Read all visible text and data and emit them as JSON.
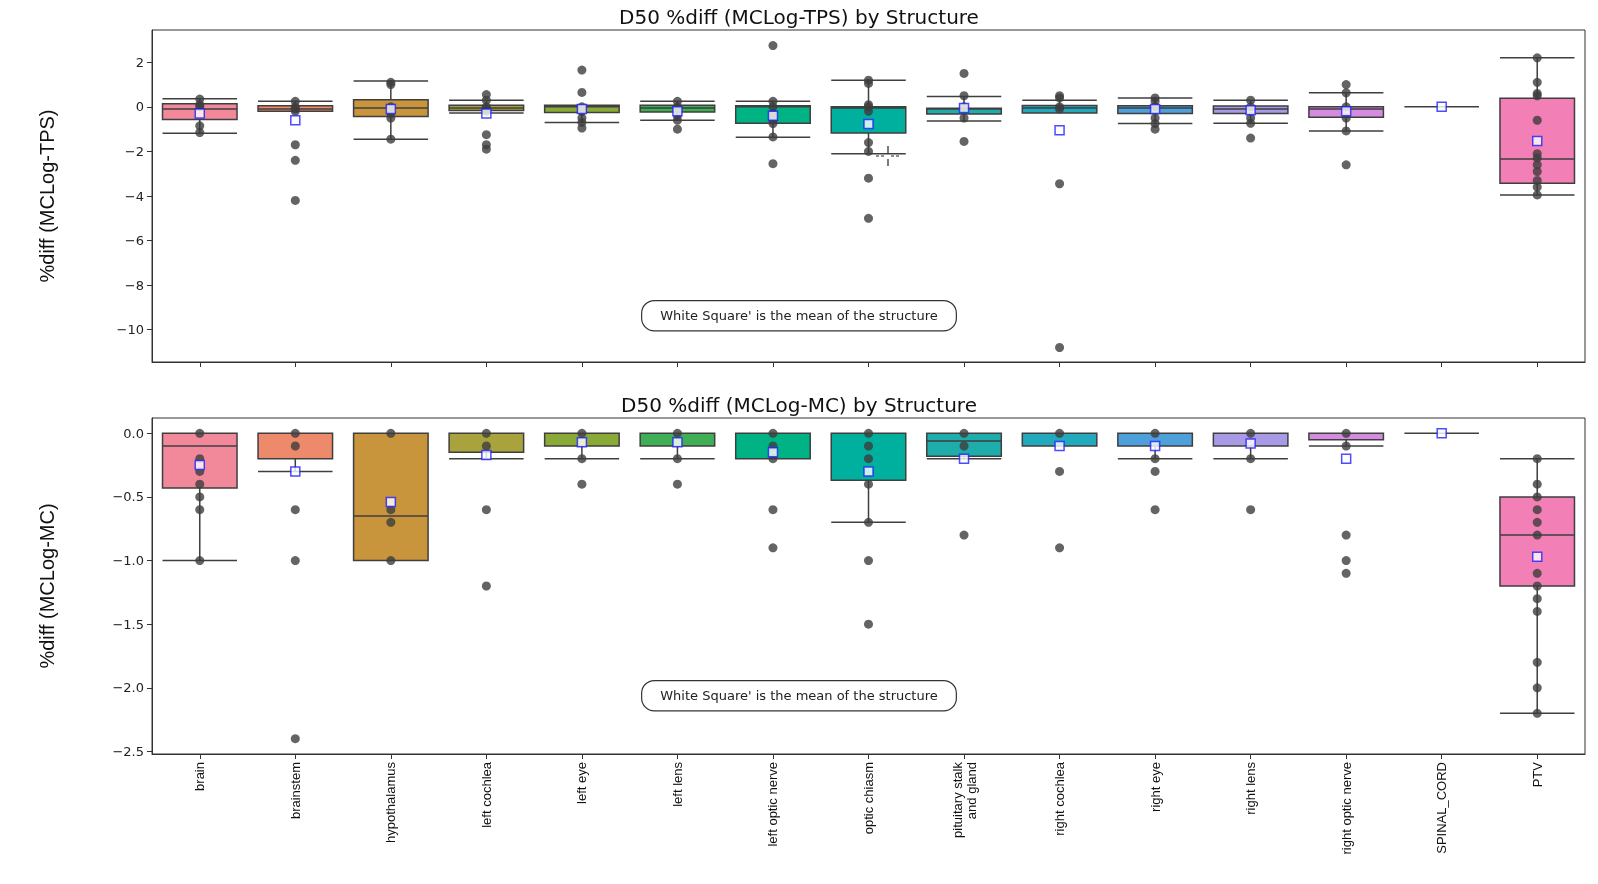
{
  "chart_data": [
    {
      "type": "box",
      "title": "D50 %diff (MCLog-TPS) by Structure",
      "ylabel": "%diff (MCLog-TPS)",
      "tick_labels": "y",
      "categories": [
        "brain",
        "brainstem",
        "hypothalamus",
        "left cochlea",
        "left eye",
        "left lens",
        "left optic nerve",
        "optic chiasm",
        "pituitary stalk\nand gland",
        "right cochlea",
        "right eye",
        "right lens",
        "right optic nerve",
        "SPINAL_CORD",
        "PTV"
      ],
      "colors": [
        "#f2899b",
        "#ee8a6c",
        "#c8943c",
        "#a8a33d",
        "#8aaa38",
        "#3fae55",
        "#00b385",
        "#00b09e",
        "#1fadab",
        "#22a9bd",
        "#4ea0da",
        "#a99ae6",
        "#d58be0",
        "#3f3f3f",
        "#f27fb5"
      ],
      "ylim": [
        -11.45,
        3.45
      ],
      "yticks": [
        {
          "value": -10,
          "label": "−10"
        },
        {
          "value": -8,
          "label": "−8"
        },
        {
          "value": -6,
          "label": "−6"
        },
        {
          "value": -4,
          "label": "−4"
        },
        {
          "value": -2,
          "label": "−2"
        },
        0,
        2
      ],
      "boxes": [
        {
          "low": -1.18,
          "q1": -0.57,
          "median": -0.1,
          "q3": 0.14,
          "high": 0.36,
          "mean": -0.3
        },
        {
          "low": -0.2,
          "q1": -0.2,
          "median": -0.1,
          "q3": 0.05,
          "high": 0.25,
          "mean": -0.6,
          "outliers": [
            -1.7,
            -2.4,
            -4.2
          ]
        },
        {
          "low": -1.45,
          "q1": -0.43,
          "median": -0.05,
          "q3": 0.32,
          "high": 1.16,
          "mean": -0.1
        },
        {
          "low": -0.27,
          "q1": -0.16,
          "median": -0.05,
          "q3": 0.07,
          "high": 0.3,
          "mean": -0.3,
          "outliers": [
            0.55,
            -1.25,
            -1.7,
            -1.9
          ]
        },
        {
          "low": -0.7,
          "q1": -0.25,
          "median": 0,
          "q3": 0.07,
          "high": 0.07,
          "mean": -0.1,
          "outliers": [
            1.65,
            0.65,
            -0.95
          ]
        },
        {
          "low": -0.6,
          "q1": -0.23,
          "median": -0.05,
          "q3": 0.07,
          "high": 0.25,
          "mean": -0.2,
          "outliers": [
            -1.0
          ]
        },
        {
          "low": -1.36,
          "q1": -0.73,
          "median": 0,
          "q3": 0.05,
          "high": 0.25,
          "mean": -0.4,
          "outliers": [
            2.75,
            -2.55
          ]
        },
        {
          "low": -2.1,
          "q1": -1.17,
          "median": -0.05,
          "q3": 0,
          "high": 1.2,
          "mean": -0.77,
          "outliers": [
            -3.2,
            -5.0
          ]
        },
        {
          "low": -0.63,
          "q1": -0.32,
          "median": -0.1,
          "q3": -0.06,
          "high": 0.46,
          "mean": -0.05,
          "outliers": [
            1.5,
            -1.55
          ]
        },
        {
          "low": -0.27,
          "q1": -0.27,
          "median": -0.05,
          "q3": 0.06,
          "high": 0.3,
          "mean": -1.05,
          "outliers": [
            0.5,
            -3.45,
            -10.8
          ]
        },
        {
          "low": -0.75,
          "q1": -0.3,
          "median": -0.05,
          "q3": 0.05,
          "high": 0.4,
          "mean": -0.1,
          "outliers": [
            -1.0
          ]
        },
        {
          "low": -0.74,
          "q1": -0.3,
          "median": -0.1,
          "q3": 0.04,
          "high": 0.3,
          "mean": -0.15,
          "outliers": [
            -1.4
          ]
        },
        {
          "low": -1.08,
          "q1": -0.47,
          "median": -0.1,
          "q3": 0,
          "high": 0.63,
          "mean": -0.2,
          "outliers": [
            1.0,
            -2.6
          ]
        },
        {
          "low": 0,
          "q1": 0,
          "median": 0,
          "q3": 0,
          "high": 0,
          "mean": 0
        },
        {
          "low": -3.95,
          "q1": -3.43,
          "median": -2.34,
          "q3": 0.39,
          "high": 2.2,
          "mean": -1.53
        }
      ],
      "series": [
        {
          "type": "scatter",
          "color": "#3d3d3d",
          "x": [
            "brain",
            "brain",
            "brain",
            "brain",
            "brain",
            "brainstem",
            "brainstem",
            "brainstem",
            "brainstem",
            "hypothalamus",
            "hypothalamus",
            "hypothalamus",
            "hypothalamus",
            "hypothalamus",
            "hypothalamus",
            "left cochlea",
            "left cochlea",
            "left cochlea",
            "left cochlea",
            "left eye",
            "left eye",
            "left eye",
            "left eye",
            "left lens",
            "left lens",
            "left lens",
            "left lens",
            "left optic nerve",
            "left optic nerve",
            "left optic nerve",
            "left optic nerve",
            "left optic nerve",
            "left optic nerve",
            "optic chiasm",
            "optic chiasm",
            "optic chiasm",
            "optic chiasm",
            "optic chiasm",
            "optic chiasm",
            "optic chiasm",
            "pituitary stalk\nand gland",
            "pituitary stalk\nand gland",
            "pituitary stalk\nand gland",
            "right cochlea",
            "right cochlea",
            "right cochlea",
            "right eye",
            "right eye",
            "right eye",
            "right eye",
            "right eye",
            "right lens",
            "right lens",
            "right lens",
            "right lens",
            "right optic nerve",
            "right optic nerve",
            "right optic nerve",
            "right optic nerve",
            "PTV",
            "PTV",
            "PTV",
            "PTV",
            "PTV",
            "PTV",
            "PTV",
            "PTV",
            "PTV",
            "PTV",
            "PTV",
            "PTV"
          ],
          "values": [
            0.35,
            0.1,
            0,
            -0.85,
            -1.15,
            0.25,
            0,
            -0.1,
            -0.2,
            1.1,
            1.0,
            0,
            -0.3,
            -0.5,
            -1.45,
            0.3,
            0,
            -0.1,
            -0.2,
            0,
            -0.2,
            -0.5,
            -0.7,
            0.25,
            0,
            -0.4,
            -0.6,
            0.25,
            0,
            -0.3,
            -0.6,
            -0.75,
            -1.35,
            1.2,
            1.05,
            0.1,
            0,
            -0.2,
            -1.6,
            -2.0,
            0.5,
            0,
            -0.5,
            0.4,
            0,
            -0.1,
            0.4,
            0.25,
            0,
            -0.5,
            -0.75,
            0.3,
            0,
            -0.5,
            -0.74,
            0.63,
            0,
            -0.5,
            -1.08,
            2.2,
            1.1,
            0.6,
            0.5,
            -0.6,
            -2.1,
            -2.3,
            -2.6,
            -2.9,
            -3.3,
            -3.6,
            -3.95
          ]
        }
      ],
      "annotations": [
        "White Square' is the mean of the structure"
      ]
    },
    {
      "type": "box",
      "title": "D50 %diff (MCLog-MC) by Structure",
      "ylabel": "%diff (MCLog-MC)",
      "categories": [
        "brain",
        "brainstem",
        "hypothalamus",
        "left cochlea",
        "left eye",
        "left lens",
        "left optic nerve",
        "optic chiasm",
        "pituitary stalk\nand gland",
        "right cochlea",
        "right eye",
        "right lens",
        "right optic nerve",
        "SPINAL_CORD",
        "PTV"
      ],
      "colors": [
        "#f2899b",
        "#ee8a6c",
        "#c8943c",
        "#a8a33d",
        "#8aaa38",
        "#3fae55",
        "#00b385",
        "#00b09e",
        "#1fadab",
        "#22a9bd",
        "#4ea0da",
        "#a99ae6",
        "#d58be0",
        "#3f3f3f",
        "#f27fb5"
      ],
      "ylim": [
        -2.52,
        0.12
      ],
      "yticks": [
        {
          "value": -2.5,
          "label": "−2.5"
        },
        {
          "value": -2,
          "label": "−2.0"
        },
        {
          "value": -1.5,
          "label": "−1.5"
        },
        {
          "value": -1,
          "label": "−1.0"
        },
        {
          "value": -0.5,
          "label": "−0.5"
        },
        {
          "value": 0,
          "label": "0.0"
        }
      ],
      "boxes": [
        {
          "low": -1.0,
          "q1": -0.43,
          "median": -0.1,
          "q3": 0,
          "high": 0,
          "mean": -0.25
        },
        {
          "low": -0.3,
          "q1": -0.2,
          "median": 0,
          "q3": 0,
          "high": 0,
          "mean": -0.3,
          "outliers": [
            -0.6,
            -1.0,
            -2.4
          ]
        },
        {
          "low": -1.0,
          "q1": -1.0,
          "median": -0.65,
          "q3": 0,
          "high": 0,
          "mean": -0.54
        },
        {
          "low": -0.2,
          "q1": -0.15,
          "median": 0,
          "q3": 0,
          "high": 0,
          "mean": -0.17,
          "outliers": [
            -0.6,
            -1.2
          ]
        },
        {
          "low": -0.2,
          "q1": -0.1,
          "median": 0,
          "q3": 0,
          "high": 0,
          "mean": -0.07,
          "outliers": [
            -0.4
          ]
        },
        {
          "low": -0.2,
          "q1": -0.1,
          "median": 0,
          "q3": 0,
          "high": 0,
          "mean": -0.07,
          "outliers": [
            -0.4
          ]
        },
        {
          "low": -0.2,
          "q1": -0.2,
          "median": 0,
          "q3": 0,
          "high": 0,
          "mean": -0.15,
          "outliers": [
            -0.6,
            -0.9
          ]
        },
        {
          "low": -0.7,
          "q1": -0.37,
          "median": 0,
          "q3": 0,
          "high": 0,
          "mean": -0.3,
          "outliers": [
            -1.0,
            -1.5
          ]
        },
        {
          "low": -0.2,
          "q1": -0.18,
          "median": -0.06,
          "q3": 0,
          "high": 0,
          "mean": -0.2,
          "outliers": [
            -0.8
          ]
        },
        {
          "low": -0.1,
          "q1": -0.1,
          "median": 0,
          "q3": 0,
          "high": 0,
          "mean": -0.1,
          "outliers": [
            -0.3,
            -0.9
          ]
        },
        {
          "low": -0.2,
          "q1": -0.1,
          "median": 0,
          "q3": 0,
          "high": 0,
          "mean": -0.1,
          "outliers": [
            -0.3,
            -0.6
          ]
        },
        {
          "low": -0.2,
          "q1": -0.1,
          "median": 0,
          "q3": 0,
          "high": 0,
          "mean": -0.08,
          "outliers": [
            -0.6
          ]
        },
        {
          "low": -0.1,
          "q1": -0.05,
          "median": 0,
          "q3": 0,
          "high": 0,
          "mean": -0.2,
          "outliers": [
            -0.8,
            -1.0,
            -1.1
          ]
        },
        {
          "low": 0,
          "q1": 0,
          "median": 0,
          "q3": 0,
          "high": 0,
          "mean": 0
        },
        {
          "low": -2.2,
          "q1": -1.2,
          "median": -0.8,
          "q3": -0.5,
          "high": -0.2,
          "mean": -0.97
        }
      ],
      "series": [
        {
          "type": "scatter",
          "color": "#3d3d3d",
          "x": [
            "brain",
            "brain",
            "brain",
            "brain",
            "brain",
            "brain",
            "brain",
            "brainstem",
            "brainstem",
            "hypothalamus",
            "hypothalamus",
            "hypothalamus",
            "hypothalamus",
            "left cochlea",
            "left cochlea",
            "left eye",
            "left eye",
            "left lens",
            "left lens",
            "left optic nerve",
            "left optic nerve",
            "left optic nerve",
            "optic chiasm",
            "optic chiasm",
            "optic chiasm",
            "optic chiasm",
            "optic chiasm",
            "pituitary stalk\nand gland",
            "pituitary stalk\nand gland",
            "right cochlea",
            "right eye",
            "right eye",
            "right lens",
            "right lens",
            "right optic nerve",
            "right optic nerve",
            "PTV",
            "PTV",
            "PTV",
            "PTV",
            "PTV",
            "PTV",
            "PTV",
            "PTV",
            "PTV",
            "PTV",
            "PTV",
            "PTV",
            "PTV"
          ],
          "values": [
            0,
            -0.2,
            -0.3,
            -0.4,
            -0.5,
            -0.6,
            -1.0,
            0,
            -0.1,
            0,
            -0.6,
            -0.7,
            -1.0,
            0,
            -0.1,
            0,
            -0.2,
            0,
            -0.2,
            0,
            -0.1,
            -0.2,
            0,
            -0.1,
            -0.2,
            -0.4,
            -0.7,
            0,
            -0.1,
            0,
            0,
            -0.2,
            0,
            -0.2,
            0,
            -0.1,
            -0.2,
            -0.4,
            -0.5,
            -0.6,
            -0.7,
            -0.8,
            -1.1,
            -1.2,
            -1.3,
            -1.4,
            -1.8,
            -2.0,
            -2.2
          ]
        }
      ],
      "annotations": [
        "White Square' is the mean of the structure"
      ]
    }
  ]
}
